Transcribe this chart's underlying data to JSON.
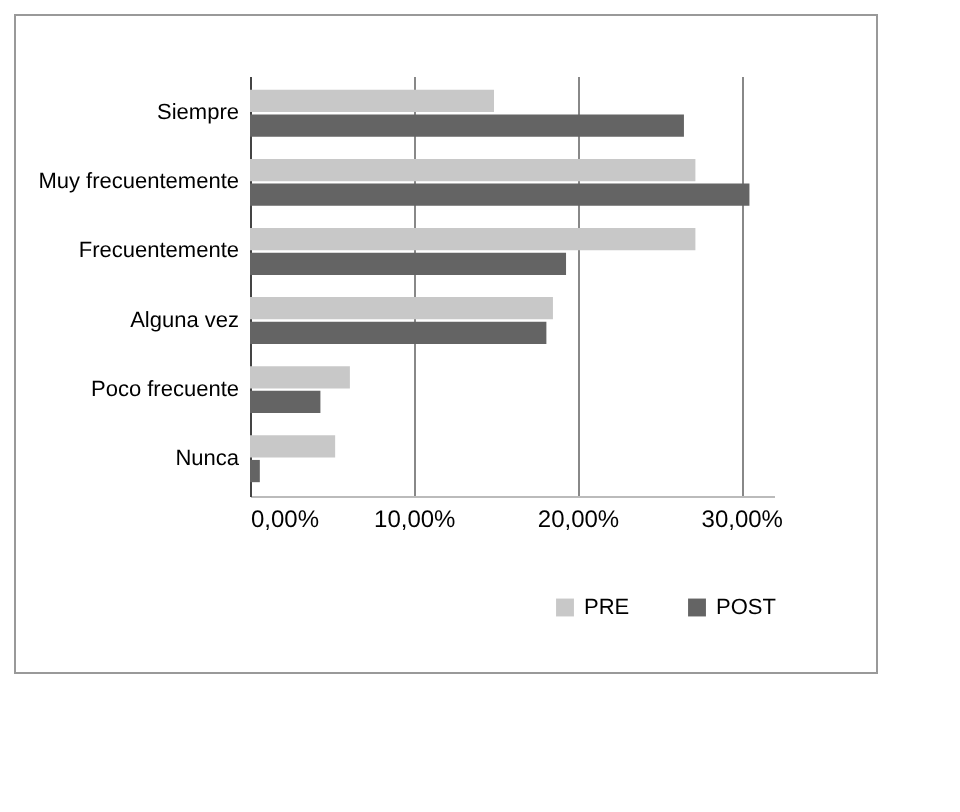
{
  "chart_data": {
    "type": "bar",
    "orientation": "horizontal",
    "categories": [
      "Siempre",
      "Muy frecuentemente",
      "Frecuentemente",
      "Alguna vez",
      "Poco frecuente",
      "Nunca"
    ],
    "series": [
      {
        "name": "PRE",
        "color": "#c8c8c8",
        "values": [
          14.9,
          27.2,
          27.2,
          18.5,
          6.1,
          5.2
        ]
      },
      {
        "name": "POST",
        "color": "#646464",
        "values": [
          26.5,
          30.5,
          19.3,
          18.1,
          4.3,
          0.6
        ]
      }
    ],
    "xlim": [
      0,
      32
    ],
    "xticks": [
      {
        "value": 0,
        "label": "0,00%"
      },
      {
        "value": 10,
        "label": "10,00%"
      },
      {
        "value": 20,
        "label": "20,00%"
      },
      {
        "value": 30,
        "label": "30,00%"
      }
    ],
    "grid": "x",
    "legend": "bottom right"
  }
}
